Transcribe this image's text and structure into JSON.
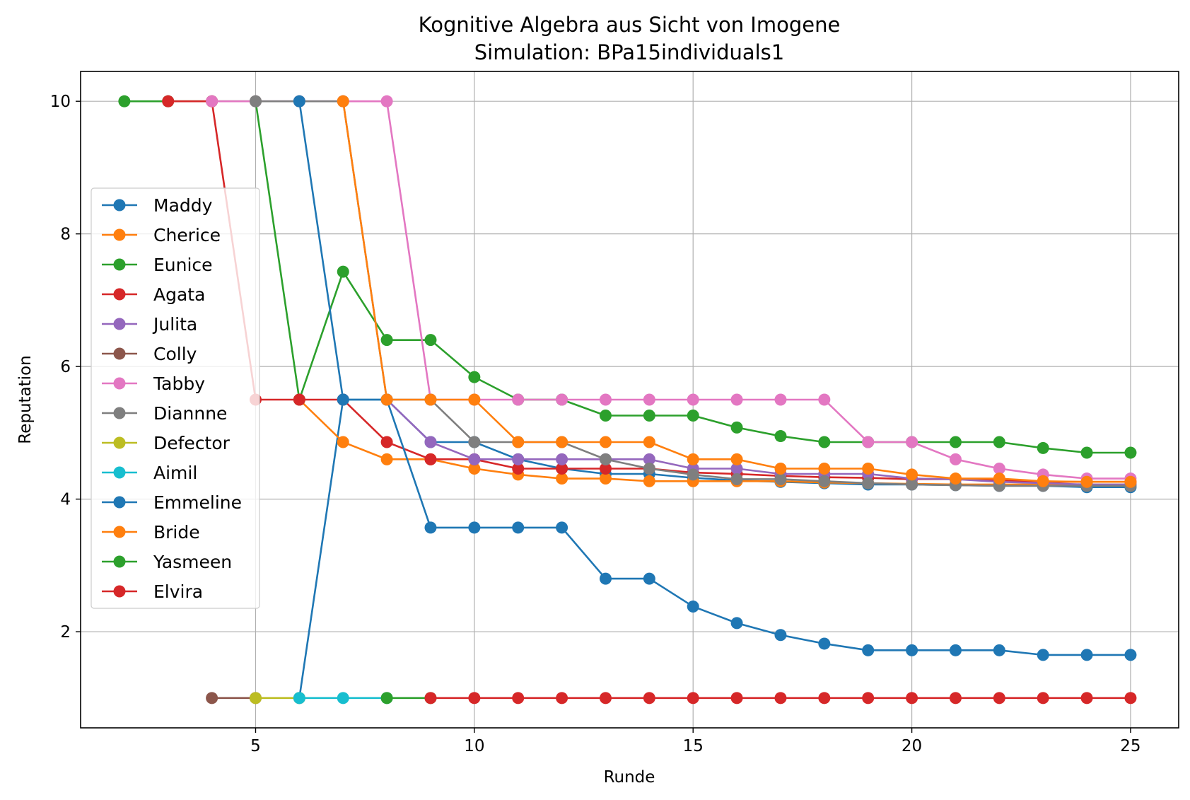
{
  "chart_data": {
    "type": "line",
    "title": "Kognitive Algebra aus Sicht von Imogene",
    "subtitle": "Simulation: BPa15individuals1",
    "xlabel": "Runde",
    "ylabel": "Reputation",
    "xlim": [
      1.0,
      26.1
    ],
    "ylim": [
      0.55,
      10.45
    ],
    "xticks": [
      5,
      10,
      15,
      20,
      25
    ],
    "yticks": [
      2,
      4,
      6,
      8,
      10
    ],
    "grid": true,
    "legend_position": "center-left",
    "series": [
      {
        "name": "Maddy",
        "color": "#1f77b4",
        "points": [
          [
            6,
            1.0
          ],
          [
            7,
            5.5
          ],
          [
            8,
            5.5
          ],
          [
            9,
            4.86
          ],
          [
            10,
            4.86
          ],
          [
            11,
            4.6
          ],
          [
            12,
            4.46
          ],
          [
            13,
            4.38
          ],
          [
            14,
            4.38
          ],
          [
            15,
            4.32
          ],
          [
            16,
            4.28
          ],
          [
            17,
            4.26
          ],
          [
            18,
            4.24
          ],
          [
            19,
            4.22
          ],
          [
            20,
            4.22
          ],
          [
            21,
            4.21
          ],
          [
            22,
            4.2
          ],
          [
            23,
            4.2
          ],
          [
            24,
            4.18
          ],
          [
            25,
            4.18
          ]
        ]
      },
      {
        "name": "Cherice",
        "color": "#ff7f0e",
        "points": [
          [
            6,
            5.5
          ],
          [
            7,
            4.86
          ],
          [
            8,
            4.6
          ],
          [
            9,
            4.6
          ],
          [
            10,
            4.46
          ],
          [
            11,
            4.37
          ],
          [
            12,
            4.31
          ],
          [
            13,
            4.31
          ],
          [
            14,
            4.27
          ],
          [
            15,
            4.27
          ],
          [
            16,
            4.27
          ],
          [
            17,
            4.27
          ],
          [
            18,
            4.25
          ],
          [
            19,
            4.24
          ],
          [
            20,
            4.23
          ],
          [
            21,
            4.22
          ],
          [
            22,
            4.22
          ],
          [
            23,
            4.22
          ],
          [
            24,
            4.22
          ],
          [
            25,
            4.22
          ]
        ]
      },
      {
        "name": "Eunice",
        "color": "#2ca02c",
        "points": [
          [
            2,
            10.0
          ],
          [
            3,
            10.0
          ],
          [
            4,
            10.0
          ],
          [
            5,
            10.0
          ],
          [
            6,
            5.5
          ],
          [
            7,
            7.43
          ],
          [
            8,
            6.4
          ],
          [
            9,
            6.4
          ],
          [
            10,
            5.84
          ],
          [
            11,
            5.5
          ],
          [
            12,
            5.5
          ],
          [
            13,
            5.26
          ],
          [
            14,
            5.26
          ],
          [
            15,
            5.26
          ],
          [
            16,
            5.08
          ],
          [
            17,
            4.95
          ],
          [
            18,
            4.86
          ],
          [
            19,
            4.86
          ],
          [
            20,
            4.86
          ],
          [
            21,
            4.86
          ],
          [
            22,
            4.86
          ],
          [
            23,
            4.77
          ],
          [
            24,
            4.7
          ],
          [
            25,
            4.7
          ]
        ]
      },
      {
        "name": "Agata",
        "color": "#d62728",
        "points": [
          [
            3,
            10.0
          ],
          [
            4,
            10.0
          ],
          [
            5,
            5.5
          ],
          [
            6,
            5.5
          ],
          [
            7,
            5.5
          ],
          [
            8,
            4.86
          ],
          [
            9,
            4.6
          ],
          [
            10,
            4.6
          ],
          [
            11,
            4.46
          ],
          [
            12,
            4.46
          ],
          [
            13,
            4.46
          ],
          [
            14,
            4.46
          ],
          [
            15,
            4.4
          ],
          [
            16,
            4.38
          ],
          [
            17,
            4.35
          ],
          [
            18,
            4.33
          ],
          [
            19,
            4.32
          ],
          [
            20,
            4.3
          ],
          [
            21,
            4.3
          ],
          [
            22,
            4.28
          ],
          [
            23,
            4.26
          ],
          [
            24,
            4.26
          ],
          [
            25,
            4.26
          ]
        ]
      },
      {
        "name": "Julita",
        "color": "#9467bd",
        "points": [
          [
            8,
            5.5
          ],
          [
            9,
            4.86
          ],
          [
            10,
            4.6
          ],
          [
            11,
            4.6
          ],
          [
            12,
            4.6
          ],
          [
            13,
            4.6
          ],
          [
            14,
            4.6
          ],
          [
            15,
            4.46
          ],
          [
            16,
            4.46
          ],
          [
            17,
            4.38
          ],
          [
            18,
            4.38
          ],
          [
            19,
            4.38
          ],
          [
            20,
            4.31
          ],
          [
            21,
            4.3
          ],
          [
            22,
            4.26
          ],
          [
            23,
            4.24
          ],
          [
            24,
            4.22
          ],
          [
            25,
            4.22
          ]
        ]
      },
      {
        "name": "Colly",
        "color": "#8c564b",
        "points": [
          [
            4,
            1.0
          ],
          [
            5,
            1.0
          ]
        ]
      },
      {
        "name": "Tabby",
        "color": "#e377c2",
        "points": [
          [
            4,
            10.0
          ],
          [
            5,
            10.0
          ],
          [
            6,
            10.0
          ],
          [
            7,
            10.0
          ],
          [
            8,
            10.0
          ],
          [
            9,
            5.5
          ],
          [
            10,
            5.5
          ],
          [
            11,
            5.5
          ],
          [
            12,
            5.5
          ],
          [
            13,
            5.5
          ],
          [
            14,
            5.5
          ],
          [
            15,
            5.5
          ],
          [
            16,
            5.5
          ],
          [
            17,
            5.5
          ],
          [
            18,
            5.5
          ],
          [
            19,
            4.86
          ],
          [
            20,
            4.86
          ],
          [
            21,
            4.6
          ],
          [
            22,
            4.46
          ],
          [
            23,
            4.37
          ],
          [
            24,
            4.31
          ],
          [
            25,
            4.31
          ]
        ]
      },
      {
        "name": "Diannne",
        "color": "#7f7f7f",
        "points": [
          [
            5,
            10.0
          ],
          [
            6,
            10.0
          ],
          [
            7,
            10.0
          ],
          [
            8,
            5.5
          ],
          [
            9,
            5.5
          ],
          [
            10,
            4.86
          ],
          [
            11,
            4.86
          ],
          [
            12,
            4.86
          ],
          [
            13,
            4.6
          ],
          [
            14,
            4.46
          ],
          [
            15,
            4.37
          ],
          [
            16,
            4.3
          ],
          [
            17,
            4.3
          ],
          [
            18,
            4.27
          ],
          [
            19,
            4.24
          ],
          [
            20,
            4.22
          ],
          [
            21,
            4.21
          ],
          [
            22,
            4.2
          ],
          [
            23,
            4.2
          ],
          [
            24,
            4.2
          ],
          [
            25,
            4.2
          ]
        ]
      },
      {
        "name": "Defector",
        "color": "#bcbd22",
        "points": [
          [
            5,
            1.0
          ],
          [
            6,
            1.0
          ]
        ]
      },
      {
        "name": "Aimil",
        "color": "#17becf",
        "points": [
          [
            6,
            1.0
          ],
          [
            7,
            1.0
          ],
          [
            8,
            1.0
          ]
        ]
      },
      {
        "name": "Emmeline",
        "color": "#1f77b4",
        "points": [
          [
            6,
            10.0
          ],
          [
            7,
            5.5
          ],
          [
            8,
            5.5
          ],
          [
            9,
            3.57
          ],
          [
            10,
            3.57
          ],
          [
            11,
            3.57
          ],
          [
            12,
            3.57
          ],
          [
            13,
            2.8
          ],
          [
            14,
            2.8
          ],
          [
            15,
            2.38
          ],
          [
            16,
            2.13
          ],
          [
            17,
            1.95
          ],
          [
            18,
            1.82
          ],
          [
            19,
            1.72
          ],
          [
            20,
            1.72
          ],
          [
            21,
            1.72
          ],
          [
            22,
            1.72
          ],
          [
            23,
            1.65
          ],
          [
            24,
            1.65
          ],
          [
            25,
            1.65
          ]
        ]
      },
      {
        "name": "Bride",
        "color": "#ff7f0e",
        "points": [
          [
            7,
            10.0
          ],
          [
            8,
            5.5
          ],
          [
            9,
            5.5
          ],
          [
            10,
            5.5
          ],
          [
            11,
            4.86
          ],
          [
            12,
            4.86
          ],
          [
            13,
            4.86
          ],
          [
            14,
            4.86
          ],
          [
            15,
            4.6
          ],
          [
            16,
            4.6
          ],
          [
            17,
            4.46
          ],
          [
            18,
            4.46
          ],
          [
            19,
            4.46
          ],
          [
            20,
            4.37
          ],
          [
            21,
            4.31
          ],
          [
            22,
            4.31
          ],
          [
            23,
            4.27
          ],
          [
            24,
            4.26
          ],
          [
            25,
            4.26
          ]
        ]
      },
      {
        "name": "Yasmeen",
        "color": "#2ca02c",
        "points": [
          [
            8,
            1.0
          ],
          [
            9,
            1.0
          ]
        ]
      },
      {
        "name": "Elvira",
        "color": "#d62728",
        "points": [
          [
            9,
            1.0
          ],
          [
            10,
            1.0
          ],
          [
            11,
            1.0
          ],
          [
            12,
            1.0
          ],
          [
            13,
            1.0
          ],
          [
            14,
            1.0
          ],
          [
            15,
            1.0
          ],
          [
            16,
            1.0
          ],
          [
            17,
            1.0
          ],
          [
            18,
            1.0
          ],
          [
            19,
            1.0
          ],
          [
            20,
            1.0
          ],
          [
            21,
            1.0
          ],
          [
            22,
            1.0
          ],
          [
            23,
            1.0
          ],
          [
            24,
            1.0
          ],
          [
            25,
            1.0
          ]
        ]
      }
    ]
  }
}
